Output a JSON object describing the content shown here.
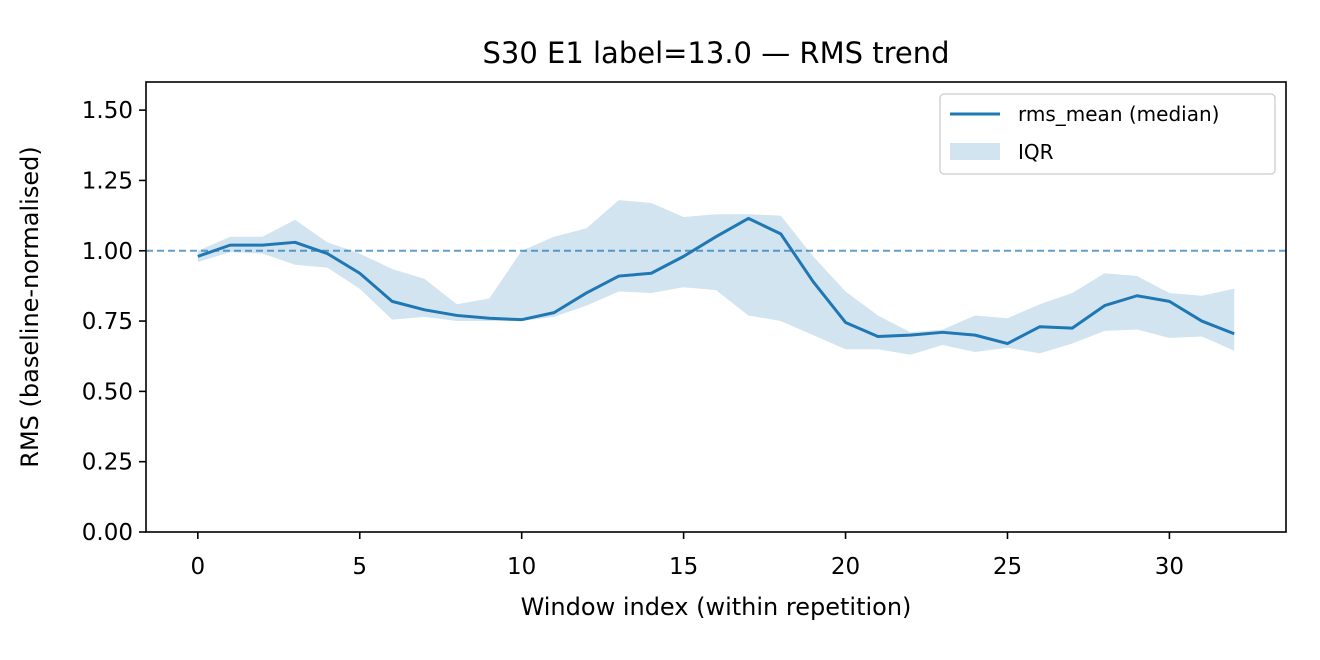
{
  "chart_data": {
    "type": "line",
    "title": "S30 E1 label=13.0 — RMS trend",
    "xlabel": "Window index (within repetition)",
    "ylabel": "RMS (baseline-normalised)",
    "xlim": [
      -1.6,
      33.6
    ],
    "ylim": [
      0,
      1.6
    ],
    "x_ticks": [
      0,
      5,
      10,
      15,
      20,
      25,
      30
    ],
    "x_tick_labels": [
      "0",
      "5",
      "10",
      "15",
      "20",
      "25",
      "30"
    ],
    "y_ticks": [
      0,
      0.25,
      0.5,
      0.75,
      1.0,
      1.25,
      1.5
    ],
    "y_tick_labels": [
      "0.00",
      "0.25",
      "0.50",
      "0.75",
      "1.00",
      "1.25",
      "1.50"
    ],
    "grid": false,
    "legend_position": "top-right",
    "reference_line": {
      "y": 1.0,
      "style": "dashed",
      "color": "#1f77b4"
    },
    "x": [
      0,
      1,
      2,
      3,
      4,
      5,
      6,
      7,
      8,
      9,
      10,
      11,
      12,
      13,
      14,
      15,
      16,
      17,
      18,
      19,
      20,
      21,
      22,
      23,
      24,
      25,
      26,
      27,
      28,
      29,
      30,
      31,
      32
    ],
    "series": [
      {
        "name": "rms_mean (median)",
        "kind": "line",
        "color": "#1f77b4",
        "values": [
          0.98,
          1.02,
          1.02,
          1.03,
          0.99,
          0.92,
          0.82,
          0.79,
          0.77,
          0.76,
          0.755,
          0.78,
          0.85,
          0.91,
          0.92,
          0.98,
          1.05,
          1.115,
          1.06,
          0.89,
          0.745,
          0.695,
          0.7,
          0.71,
          0.7,
          0.67,
          0.73,
          0.725,
          0.805,
          0.84,
          0.82,
          0.75,
          0.705
        ]
      },
      {
        "name": "IQR",
        "kind": "band",
        "color": "#1f77b4",
        "opacity": 0.2,
        "lower": [
          0.96,
          0.995,
          0.99,
          0.95,
          0.94,
          0.865,
          0.755,
          0.765,
          0.75,
          0.75,
          0.75,
          0.765,
          0.805,
          0.855,
          0.85,
          0.87,
          0.86,
          0.77,
          0.75,
          0.7,
          0.65,
          0.65,
          0.63,
          0.665,
          0.64,
          0.655,
          0.635,
          0.67,
          0.715,
          0.72,
          0.69,
          0.695,
          0.645
        ],
        "upper": [
          1.0,
          1.05,
          1.05,
          1.11,
          1.03,
          0.99,
          0.935,
          0.9,
          0.81,
          0.83,
          1.0,
          1.05,
          1.08,
          1.18,
          1.17,
          1.12,
          1.13,
          1.13,
          1.125,
          0.98,
          0.855,
          0.77,
          0.71,
          0.72,
          0.77,
          0.76,
          0.81,
          0.85,
          0.92,
          0.91,
          0.85,
          0.84,
          0.865
        ]
      }
    ]
  }
}
